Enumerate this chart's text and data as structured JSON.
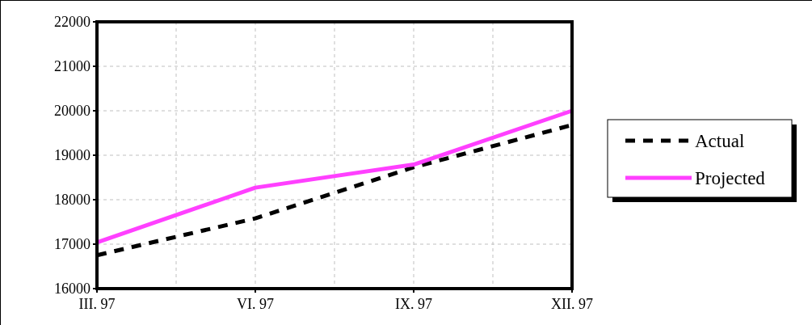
{
  "chart_data": {
    "type": "line",
    "categories": [
      "III. 97",
      "VI. 97",
      "IX. 97",
      "XII. 97"
    ],
    "series": [
      {
        "name": "Actual",
        "color": "#000000",
        "values": [
          16750,
          17580,
          18730,
          19680
        ],
        "line_style": "dashed"
      },
      {
        "name": "Projected",
        "color": "#ff40ff",
        "values": [
          17040,
          18270,
          18790,
          20000
        ],
        "line_style": "solid"
      }
    ],
    "ylim": [
      16000,
      22000
    ],
    "yticks": [
      16000,
      17000,
      18000,
      19000,
      20000,
      21000,
      22000
    ],
    "grid": true,
    "legend": "right"
  }
}
